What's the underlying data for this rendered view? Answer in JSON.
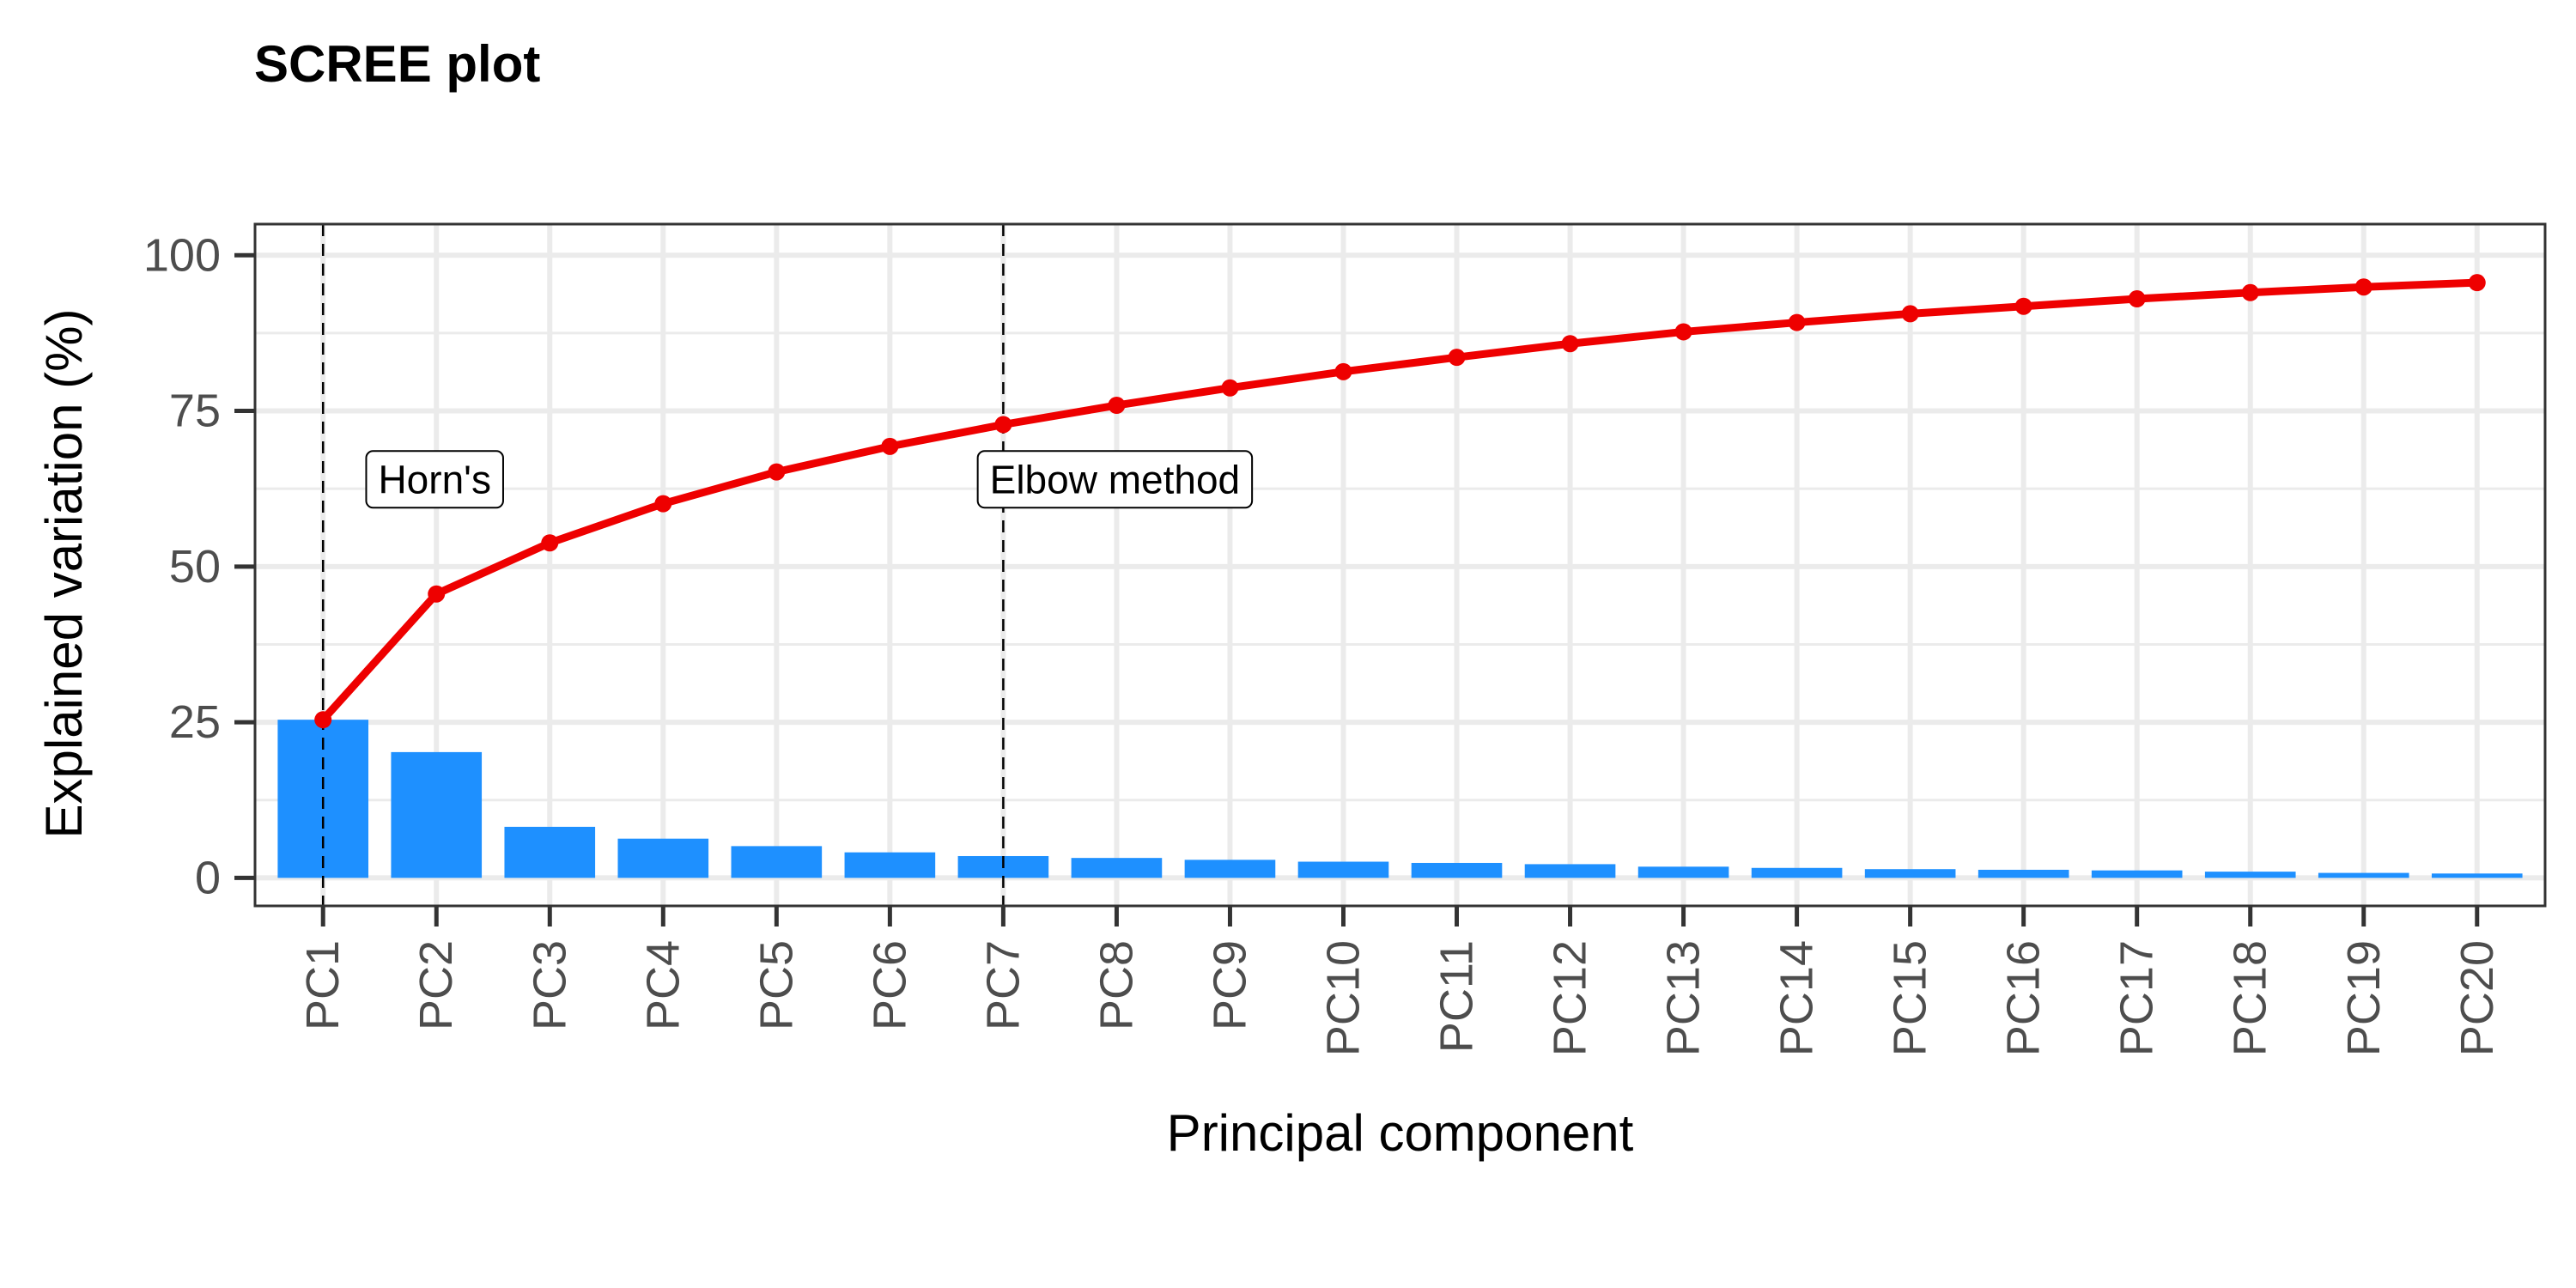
{
  "chart_data": {
    "type": "bar",
    "title": "SCREE plot",
    "xlabel": "Principal component",
    "ylabel": "Explained variation (%)",
    "categories": [
      "PC1",
      "PC2",
      "PC3",
      "PC4",
      "PC5",
      "PC6",
      "PC7",
      "PC8",
      "PC9",
      "PC10",
      "PC11",
      "PC12",
      "PC13",
      "PC14",
      "PC15",
      "PC16",
      "PC17",
      "PC18",
      "PC19",
      "PC20"
    ],
    "series": [
      {
        "kind": "bar",
        "color": "#1e90ff",
        "values": [
          25.4,
          20.2,
          8.2,
          6.3,
          5.1,
          4.1,
          3.5,
          3.2,
          2.9,
          2.6,
          2.4,
          2.2,
          1.8,
          1.6,
          1.4,
          1.3,
          1.2,
          1.0,
          0.8,
          0.7
        ]
      },
      {
        "kind": "line",
        "color": "#ee0000",
        "values": [
          25.4,
          45.6,
          53.8,
          60.1,
          65.2,
          69.3,
          72.8,
          75.9,
          78.7,
          81.3,
          83.6,
          85.8,
          87.7,
          89.2,
          90.6,
          91.8,
          93.0,
          94.0,
          94.9,
          95.6
        ]
      }
    ],
    "ylim": [
      -4.5,
      105
    ],
    "yticks": [
      0,
      25,
      50,
      75,
      100
    ],
    "grid": true,
    "annotations": [
      {
        "category": "PC1",
        "label": "Horn's",
        "label_y": 64,
        "line": "dashed"
      },
      {
        "category": "PC7",
        "label": "Elbow method",
        "label_y": 64,
        "line": "dashed"
      }
    ]
  }
}
